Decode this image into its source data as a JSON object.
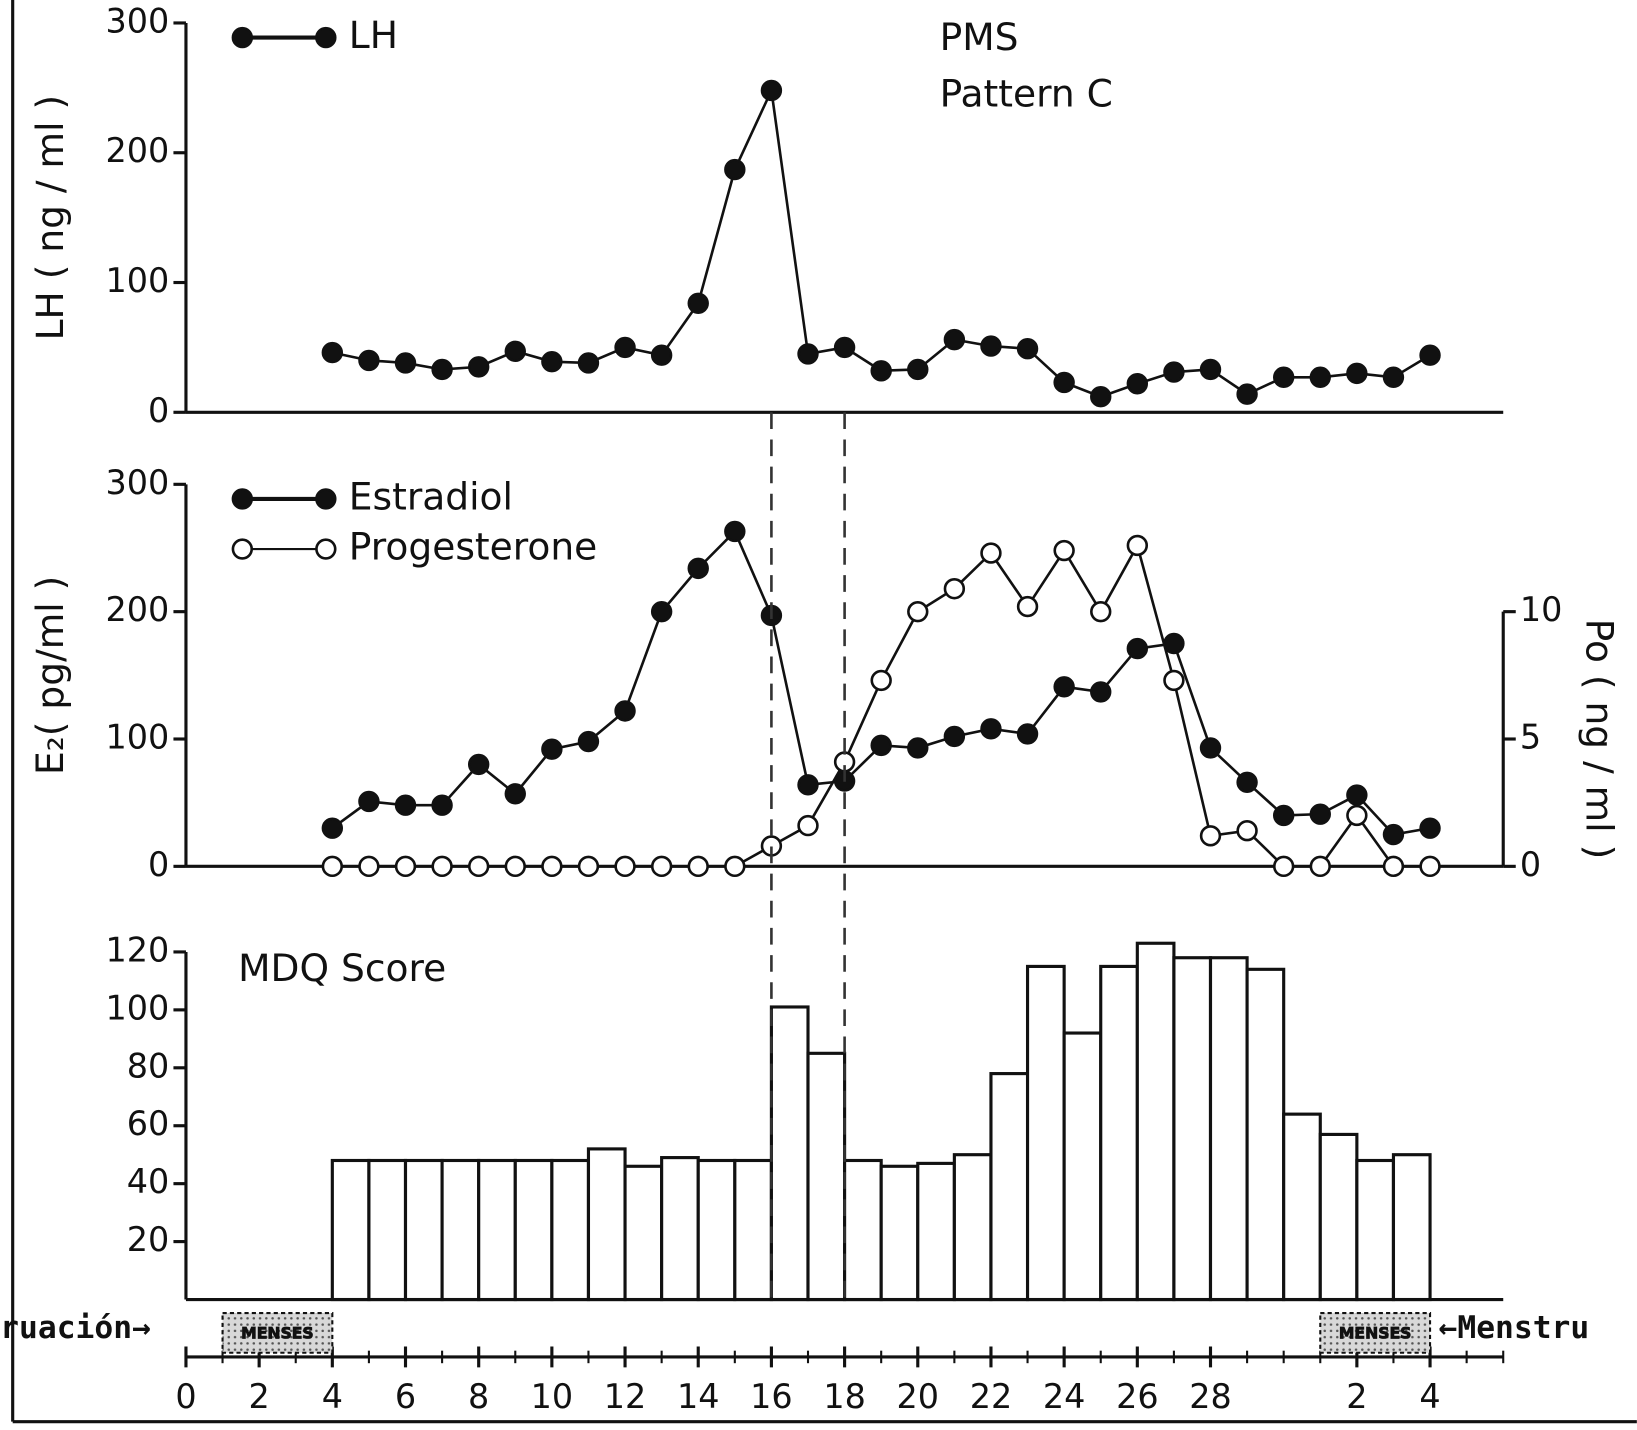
{
  "chart_data": [
    {
      "type": "line",
      "title": "PMS",
      "subtitle": "Pattern C",
      "ylabel": "LH ( ng / ml )",
      "x": [
        4,
        5,
        6,
        7,
        8,
        9,
        10,
        11,
        12,
        13,
        14,
        15,
        16,
        17,
        18,
        19,
        20,
        21,
        22,
        23,
        24,
        25,
        26,
        27,
        28,
        29,
        30,
        31,
        32,
        33,
        34
      ],
      "series": [
        {
          "name": "LH",
          "color": "#111111",
          "marker": "filled",
          "values": [
            46,
            40,
            38,
            33,
            35,
            47,
            39,
            38,
            50,
            44,
            84,
            187,
            248,
            45,
            50,
            32,
            33,
            56,
            51,
            49,
            23,
            12,
            22,
            31,
            33,
            14,
            27,
            27,
            30,
            27,
            44
          ]
        }
      ],
      "xlim": [
        0,
        36
      ],
      "ylim": [
        0,
        300
      ],
      "yticks": [
        0,
        100,
        200,
        300
      ]
    },
    {
      "type": "line",
      "ylabel": "E₂( pg/ml )",
      "y2label": "Po ( ng / ml )",
      "x": [
        4,
        5,
        6,
        7,
        8,
        9,
        10,
        11,
        12,
        13,
        14,
        15,
        16,
        17,
        18,
        19,
        20,
        21,
        22,
        23,
        24,
        25,
        26,
        27,
        28,
        29,
        30,
        31,
        32,
        33,
        34
      ],
      "series": [
        {
          "name": "Estradiol",
          "color": "#111111",
          "marker": "filled",
          "values": [
            30,
            51,
            48,
            48,
            80,
            57,
            92,
            98,
            122,
            200,
            234,
            263,
            197,
            64,
            67,
            95,
            93,
            102,
            108,
            104,
            141,
            137,
            171,
            175,
            93,
            66,
            40,
            41,
            56,
            25,
            30
          ]
        },
        {
          "name": "Progesterone",
          "color": "#111111",
          "marker": "open",
          "axis": "y2",
          "values": [
            0,
            0,
            0,
            0,
            0,
            0,
            0,
            0,
            0,
            0,
            0,
            0,
            0.8,
            1.6,
            4.1,
            7.3,
            10,
            10.9,
            12.3,
            10.2,
            12.4,
            10,
            12.6,
            7.3,
            1.2,
            1.4,
            0,
            0,
            2,
            0,
            0
          ]
        }
      ],
      "xlim": [
        0,
        36
      ],
      "ylim": [
        0,
        300
      ],
      "yticks": [
        0,
        100,
        200,
        300
      ],
      "y2lim": [
        0,
        15
      ],
      "y2ticks": [
        0,
        5,
        10
      ]
    },
    {
      "type": "histogram",
      "title": "MDQ Score",
      "bins": [
        4,
        5,
        6,
        7,
        8,
        9,
        10,
        11,
        12,
        13,
        14,
        15,
        16,
        17,
        18,
        19,
        20,
        21,
        22,
        23,
        24,
        25,
        26,
        27,
        28,
        29,
        30,
        31,
        32,
        33,
        34
      ],
      "values": [
        48,
        48,
        48,
        48,
        48,
        48,
        48,
        52,
        46,
        49,
        48,
        48,
        101,
        85,
        48,
        46,
        47,
        50,
        78,
        115,
        92,
        115,
        123,
        118,
        118,
        114,
        64,
        57,
        48,
        50
      ],
      "color": "#ffffff",
      "xlim": [
        0,
        36
      ],
      "ylim": [
        0,
        120
      ],
      "yticks": [
        20,
        40,
        60,
        80,
        100,
        120
      ],
      "xticks": [
        0,
        2,
        4,
        6,
        8,
        10,
        12,
        14,
        16,
        18,
        20,
        22,
        24,
        26,
        28,
        {
          "value": 32,
          "label": "2"
        },
        {
          "value": 34,
          "label": "4"
        }
      ],
      "xticks_minor": [
        1,
        3,
        5,
        7,
        9,
        11,
        13,
        15,
        17,
        19,
        21,
        23,
        25,
        27,
        29,
        30,
        31,
        33,
        35,
        36
      ],
      "reference_lines": [
        16,
        18
      ],
      "annotations": [
        {
          "text": "MENSES",
          "x": [
            1,
            4
          ]
        },
        {
          "text": "MENSES",
          "x": [
            31,
            34
          ]
        }
      ],
      "side_notes": [
        "ruación→",
        "←Menstru"
      ]
    }
  ]
}
